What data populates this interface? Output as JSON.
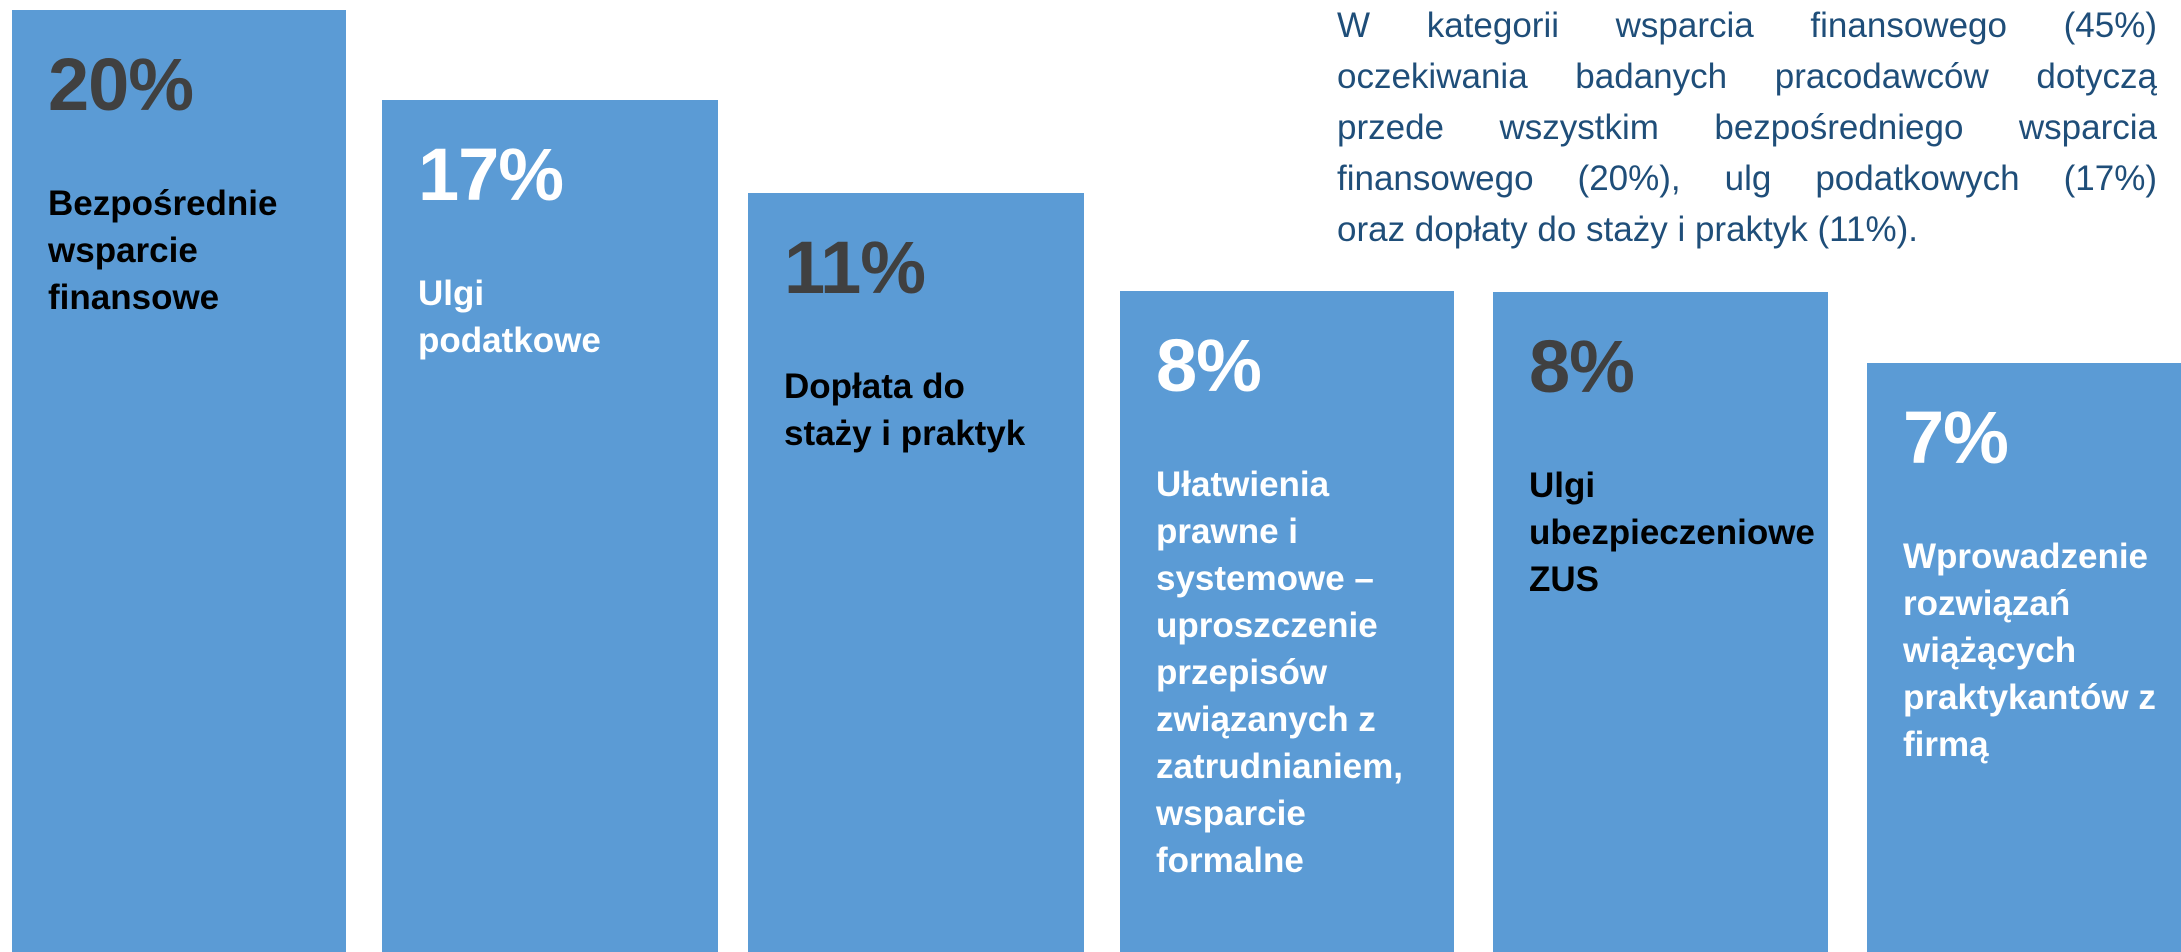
{
  "paragraph": [
    "W kategorii wsparcia finansowego (45%)",
    "oczekiwania badanych pracodawców dotyczą",
    "przede wszystkim bezpośredniego wsparcia",
    "finansowego (20%), ulg podatkowych (17%)",
    "oraz dopłaty do staży i praktyk (11%)."
  ],
  "items": [
    {
      "value": "20%",
      "label": [
        "Bezpośrednie",
        "wsparcie",
        "finansowe"
      ]
    },
    {
      "value": "17%",
      "label": [
        "Ulgi",
        "podatkowe"
      ]
    },
    {
      "value": "11%",
      "label": [
        "Dopłata do",
        "staży i praktyk"
      ]
    },
    {
      "value": "8%",
      "label": [
        "Ułatwienia",
        "prawne i",
        "systemowe –",
        "uproszczenie",
        "przepisów",
        "związanych z",
        "zatrudnianiem,",
        "wsparcie",
        "formalne"
      ]
    },
    {
      "value": "8%",
      "label": [
        "Ulgi",
        "ubezpieczeniowe",
        "ZUS"
      ]
    },
    {
      "value": "7%",
      "label": [
        "Wprowadzenie",
        "rozwiązań",
        "wiążących",
        "praktykantów z",
        "firmą"
      ]
    }
  ]
}
